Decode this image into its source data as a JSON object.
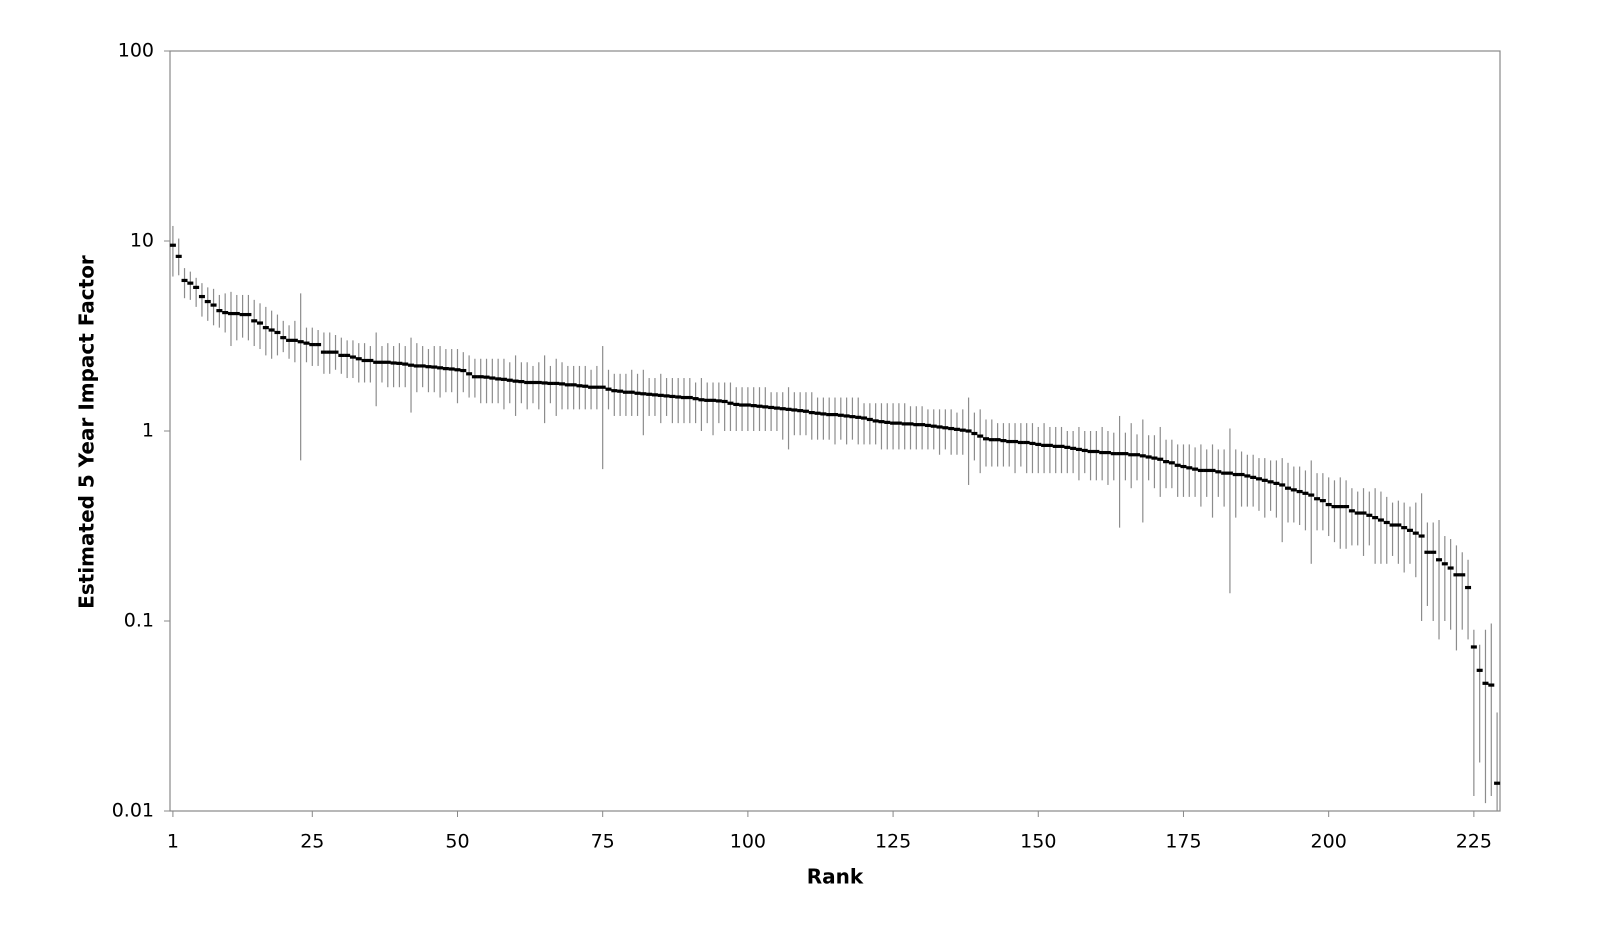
{
  "chart_data": {
    "type": "errorbar",
    "x_label": "Rank",
    "y_label": "Estimated 5 Year Impact Factor",
    "yscale": "log",
    "ylim": [
      0.01,
      100
    ],
    "yticks": [
      0.01,
      0.1,
      1,
      10,
      100
    ],
    "xlim": [
      0.5,
      229.5
    ],
    "xticks": [
      1,
      25,
      50,
      75,
      100,
      125,
      150,
      175,
      200,
      225
    ],
    "color": "#000000",
    "error_color": "#8c8c8c",
    "x": [
      1,
      2,
      3,
      4,
      5,
      6,
      7,
      8,
      9,
      10,
      11,
      12,
      13,
      14,
      15,
      16,
      17,
      18,
      19,
      20,
      21,
      22,
      23,
      24,
      25,
      26,
      27,
      28,
      29,
      30,
      31,
      32,
      33,
      34,
      35,
      36,
      37,
      38,
      39,
      40,
      41,
      42,
      43,
      44,
      45,
      46,
      47,
      48,
      49,
      50,
      51,
      52,
      53,
      54,
      55,
      56,
      57,
      58,
      59,
      60,
      61,
      62,
      63,
      64,
      65,
      66,
      67,
      68,
      69,
      70,
      71,
      72,
      73,
      74,
      75,
      76,
      77,
      78,
      79,
      80,
      81,
      82,
      83,
      84,
      85,
      86,
      87,
      88,
      89,
      90,
      91,
      92,
      93,
      94,
      95,
      96,
      97,
      98,
      99,
      100,
      101,
      102,
      103,
      104,
      105,
      106,
      107,
      108,
      109,
      110,
      111,
      112,
      113,
      114,
      115,
      116,
      117,
      118,
      119,
      120,
      121,
      122,
      123,
      124,
      125,
      126,
      127,
      128,
      129,
      130,
      131,
      132,
      133,
      134,
      135,
      136,
      137,
      138,
      139,
      140,
      141,
      142,
      143,
      144,
      145,
      146,
      147,
      148,
      149,
      150,
      151,
      152,
      153,
      154,
      155,
      156,
      157,
      158,
      159,
      160,
      161,
      162,
      163,
      164,
      165,
      166,
      167,
      168,
      169,
      170,
      171,
      172,
      173,
      174,
      175,
      176,
      177,
      178,
      179,
      180,
      181,
      182,
      183,
      184,
      185,
      186,
      187,
      188,
      189,
      190,
      191,
      192,
      193,
      194,
      195,
      196,
      197,
      198,
      199,
      200,
      201,
      202,
      203,
      204,
      205,
      206,
      207,
      208,
      209,
      210,
      211,
      212,
      213,
      214,
      215,
      216,
      217,
      218,
      219,
      220,
      221,
      222,
      223,
      224,
      225,
      226,
      227,
      228,
      229
    ],
    "values": [
      9.5,
      8.3,
      6.2,
      6.0,
      5.7,
      5.1,
      4.8,
      4.6,
      4.3,
      4.2,
      4.15,
      4.15,
      4.1,
      4.1,
      3.8,
      3.7,
      3.5,
      3.4,
      3.3,
      3.1,
      3.0,
      3.0,
      2.95,
      2.9,
      2.85,
      2.85,
      2.6,
      2.6,
      2.6,
      2.5,
      2.5,
      2.45,
      2.4,
      2.35,
      2.35,
      2.3,
      2.3,
      2.3,
      2.28,
      2.27,
      2.25,
      2.22,
      2.2,
      2.2,
      2.18,
      2.17,
      2.15,
      2.13,
      2.12,
      2.1,
      2.08,
      2.0,
      1.93,
      1.93,
      1.92,
      1.9,
      1.88,
      1.87,
      1.85,
      1.83,
      1.82,
      1.8,
      1.8,
      1.8,
      1.79,
      1.78,
      1.78,
      1.77,
      1.75,
      1.75,
      1.73,
      1.72,
      1.7,
      1.7,
      1.7,
      1.66,
      1.63,
      1.62,
      1.6,
      1.6,
      1.58,
      1.57,
      1.56,
      1.55,
      1.54,
      1.53,
      1.52,
      1.51,
      1.5,
      1.5,
      1.48,
      1.46,
      1.45,
      1.45,
      1.44,
      1.43,
      1.4,
      1.38,
      1.37,
      1.37,
      1.36,
      1.35,
      1.34,
      1.33,
      1.32,
      1.31,
      1.3,
      1.29,
      1.28,
      1.27,
      1.25,
      1.24,
      1.23,
      1.22,
      1.22,
      1.21,
      1.2,
      1.19,
      1.18,
      1.17,
      1.15,
      1.13,
      1.12,
      1.11,
      1.1,
      1.1,
      1.09,
      1.09,
      1.08,
      1.08,
      1.07,
      1.06,
      1.05,
      1.04,
      1.03,
      1.02,
      1.01,
      1.0,
      0.97,
      0.94,
      0.91,
      0.9,
      0.9,
      0.89,
      0.88,
      0.88,
      0.87,
      0.87,
      0.86,
      0.85,
      0.84,
      0.84,
      0.83,
      0.83,
      0.82,
      0.81,
      0.8,
      0.79,
      0.78,
      0.78,
      0.77,
      0.77,
      0.76,
      0.76,
      0.76,
      0.75,
      0.75,
      0.74,
      0.73,
      0.72,
      0.71,
      0.69,
      0.68,
      0.66,
      0.65,
      0.64,
      0.63,
      0.62,
      0.62,
      0.62,
      0.61,
      0.6,
      0.6,
      0.59,
      0.59,
      0.58,
      0.57,
      0.56,
      0.55,
      0.54,
      0.53,
      0.52,
      0.5,
      0.49,
      0.48,
      0.47,
      0.46,
      0.44,
      0.43,
      0.41,
      0.4,
      0.4,
      0.4,
      0.38,
      0.37,
      0.37,
      0.36,
      0.35,
      0.34,
      0.33,
      0.32,
      0.32,
      0.31,
      0.3,
      0.29,
      0.28,
      0.23,
      0.23,
      0.21,
      0.2,
      0.19,
      0.175,
      0.175,
      0.15,
      0.073,
      0.055,
      0.047,
      0.046,
      0.014
    ],
    "lower": [
      6.5,
      6.6,
      5.0,
      4.9,
      4.5,
      4.0,
      3.8,
      3.6,
      3.5,
      3.3,
      2.8,
      3.0,
      3.1,
      3.0,
      2.8,
      2.7,
      2.5,
      2.4,
      2.5,
      2.6,
      2.4,
      2.3,
      0.7,
      2.3,
      2.2,
      2.2,
      2.0,
      2.0,
      2.1,
      2.0,
      1.9,
      1.9,
      1.8,
      1.8,
      1.8,
      1.35,
      1.8,
      1.7,
      1.7,
      1.7,
      1.7,
      1.25,
      1.6,
      1.7,
      1.6,
      1.6,
      1.5,
      1.6,
      1.6,
      1.4,
      1.6,
      1.5,
      1.5,
      1.4,
      1.4,
      1.4,
      1.4,
      1.3,
      1.4,
      1.2,
      1.4,
      1.3,
      1.4,
      1.3,
      1.1,
      1.4,
      1.2,
      1.3,
      1.3,
      1.3,
      1.3,
      1.3,
      1.3,
      1.3,
      0.63,
      1.3,
      1.2,
      1.2,
      1.2,
      1.2,
      1.2,
      0.95,
      1.2,
      1.2,
      1.1,
      1.2,
      1.1,
      1.1,
      1.1,
      1.1,
      1.1,
      1.0,
      1.1,
      0.95,
      1.1,
      1.0,
      1.0,
      1.0,
      1.0,
      1.0,
      1.0,
      1.0,
      1.0,
      1.0,
      1.0,
      0.9,
      0.8,
      0.95,
      0.95,
      0.95,
      0.9,
      0.9,
      0.9,
      0.9,
      0.85,
      0.9,
      0.85,
      0.9,
      0.85,
      0.85,
      0.85,
      0.85,
      0.8,
      0.8,
      0.8,
      0.8,
      0.8,
      0.8,
      0.8,
      0.8,
      0.8,
      0.8,
      0.75,
      0.8,
      0.75,
      0.75,
      0.75,
      0.52,
      0.7,
      0.6,
      0.65,
      0.65,
      0.65,
      0.65,
      0.65,
      0.6,
      0.65,
      0.6,
      0.6,
      0.6,
      0.6,
      0.6,
      0.6,
      0.6,
      0.6,
      0.6,
      0.55,
      0.6,
      0.55,
      0.55,
      0.55,
      0.52,
      0.55,
      0.31,
      0.55,
      0.5,
      0.55,
      0.33,
      0.55,
      0.5,
      0.45,
      0.5,
      0.5,
      0.45,
      0.45,
      0.45,
      0.45,
      0.4,
      0.45,
      0.35,
      0.45,
      0.4,
      0.14,
      0.35,
      0.4,
      0.4,
      0.4,
      0.38,
      0.35,
      0.38,
      0.35,
      0.26,
      0.33,
      0.33,
      0.32,
      0.3,
      0.2,
      0.3,
      0.3,
      0.28,
      0.26,
      0.24,
      0.24,
      0.25,
      0.25,
      0.22,
      0.25,
      0.2,
      0.2,
      0.2,
      0.22,
      0.2,
      0.18,
      0.2,
      0.17,
      0.1,
      0.12,
      0.1,
      0.08,
      0.1,
      0.09,
      0.07,
      0.09,
      0.08,
      0.012,
      0.018,
      0.011,
      0.012,
      0.01
    ],
    "upper": [
      12,
      10.3,
      7.2,
      6.9,
      6.4,
      6.0,
      5.7,
      5.6,
      5.2,
      5.3,
      5.4,
      5.2,
      5.2,
      5.2,
      4.9,
      4.7,
      4.5,
      4.3,
      4.1,
      3.8,
      3.6,
      3.8,
      5.3,
      3.5,
      3.5,
      3.4,
      3.3,
      3.3,
      3.2,
      3.1,
      3.0,
      3.0,
      2.9,
      2.9,
      2.8,
      3.3,
      2.8,
      2.9,
      2.8,
      2.9,
      2.8,
      3.1,
      2.9,
      2.8,
      2.7,
      2.8,
      2.8,
      2.7,
      2.7,
      2.7,
      2.6,
      2.5,
      2.4,
      2.4,
      2.4,
      2.4,
      2.4,
      2.4,
      2.3,
      2.5,
      2.3,
      2.3,
      2.2,
      2.3,
      2.5,
      2.2,
      2.4,
      2.3,
      2.2,
      2.2,
      2.2,
      2.2,
      2.1,
      2.2,
      2.8,
      2.1,
      2.0,
      2.0,
      2.0,
      2.1,
      2.0,
      2.1,
      1.9,
      1.9,
      2.0,
      1.9,
      1.9,
      1.9,
      1.9,
      1.9,
      1.8,
      1.9,
      1.8,
      1.8,
      1.8,
      1.8,
      1.8,
      1.7,
      1.7,
      1.7,
      1.7,
      1.7,
      1.7,
      1.6,
      1.6,
      1.6,
      1.7,
      1.6,
      1.6,
      1.6,
      1.6,
      1.5,
      1.5,
      1.5,
      1.5,
      1.5,
      1.5,
      1.5,
      1.5,
      1.4,
      1.4,
      1.4,
      1.4,
      1.4,
      1.4,
      1.4,
      1.4,
      1.35,
      1.35,
      1.35,
      1.3,
      1.3,
      1.3,
      1.3,
      1.3,
      1.25,
      1.3,
      1.5,
      1.25,
      1.3,
      1.15,
      1.15,
      1.1,
      1.1,
      1.1,
      1.1,
      1.1,
      1.1,
      1.1,
      1.05,
      1.1,
      1.05,
      1.05,
      1.05,
      1.0,
      1.0,
      1.05,
      1.0,
      1.0,
      1.0,
      1.05,
      1.0,
      0.98,
      1.2,
      0.98,
      1.1,
      0.96,
      1.15,
      0.95,
      0.95,
      1.05,
      0.9,
      0.9,
      0.85,
      0.85,
      0.85,
      0.82,
      0.85,
      0.8,
      0.85,
      0.8,
      0.8,
      1.03,
      0.8,
      0.78,
      0.75,
      0.75,
      0.72,
      0.72,
      0.7,
      0.7,
      0.72,
      0.68,
      0.65,
      0.65,
      0.62,
      0.7,
      0.6,
      0.6,
      0.57,
      0.55,
      0.57,
      0.55,
      0.5,
      0.48,
      0.5,
      0.48,
      0.5,
      0.48,
      0.45,
      0.42,
      0.43,
      0.42,
      0.4,
      0.42,
      0.47,
      0.33,
      0.33,
      0.34,
      0.28,
      0.27,
      0.25,
      0.23,
      0.21,
      0.09,
      0.075,
      0.09,
      0.097,
      0.033
    ]
  }
}
